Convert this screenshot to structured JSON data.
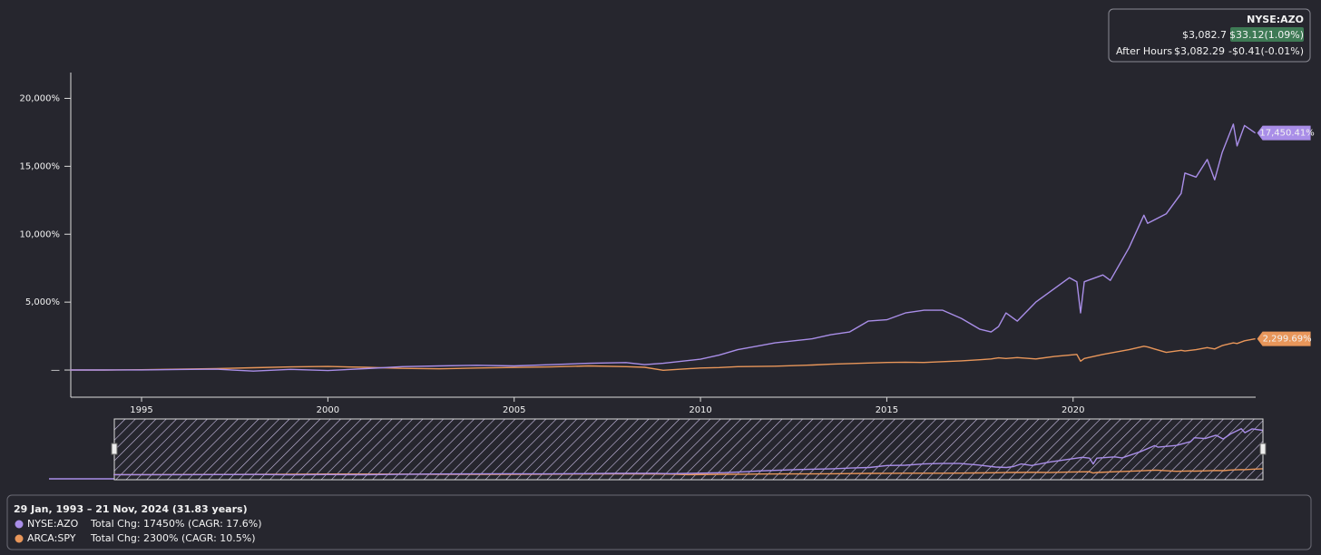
{
  "chart_data": {
    "type": "line",
    "quote": {
      "symbol": "NYSE:AZO",
      "price": "$3,082.7",
      "change": "$33.12(1.09%)",
      "after_hours_label": "After Hours",
      "after_hours_price": "$3,082.29",
      "after_hours_change": "-$0.41(-0.01%)"
    },
    "period": "29 Jan, 1993 – 21 Nov, 2024 (31.83 years)",
    "x": [
      1993.08,
      1994,
      1995,
      1996,
      1997,
      1998,
      1999,
      2000,
      2001,
      2002,
      2003,
      2004,
      2005,
      2006,
      2007,
      2008,
      2008.5,
      2009,
      2010,
      2010.5,
      2011,
      2012,
      2013,
      2013.5,
      2014,
      2014.5,
      2015,
      2015.5,
      2016,
      2016.5,
      2017,
      2017.5,
      2017.8,
      2018,
      2018.2,
      2018.5,
      2019,
      2019.5,
      2019.9,
      2020.1,
      2020.2,
      2020.3,
      2020.8,
      2021,
      2021.5,
      2021.9,
      2022,
      2022.5,
      2022.9,
      2023,
      2023.3,
      2023.6,
      2023.8,
      2024,
      2024.3,
      2024.4,
      2024.6,
      2024.89
    ],
    "series": [
      {
        "name": "NYSE:AZO",
        "color": "#a98ee8",
        "stats": "Total Chg: 17450% (CAGR: 17.6%)",
        "values": [
          0,
          0,
          10,
          40,
          60,
          -80,
          50,
          -40,
          100,
          250,
          300,
          350,
          300,
          400,
          500,
          550,
          400,
          500,
          800,
          1100,
          1500,
          2000,
          2300,
          2600,
          2800,
          3600,
          3700,
          4200,
          4400,
          4400,
          3800,
          3000,
          2800,
          3200,
          4200,
          3600,
          5000,
          6000,
          6800,
          6500,
          4200,
          6500,
          7000,
          6600,
          9000,
          11400,
          10800,
          11500,
          13000,
          14500,
          14200,
          15500,
          14000,
          16000,
          18100,
          16500,
          18000,
          17450.41
        ],
        "value_labels": [
          null,
          null,
          null,
          null,
          null,
          null,
          null,
          null,
          null,
          null,
          null,
          null,
          null,
          null,
          null,
          null,
          null,
          null,
          null,
          null,
          null,
          null,
          null,
          null,
          null,
          null,
          null,
          null,
          null,
          null,
          null,
          null,
          null,
          null,
          null,
          null,
          null,
          null,
          null,
          null,
          null,
          null,
          null,
          null,
          null,
          null,
          null,
          null,
          null,
          null,
          null,
          null,
          null,
          null,
          null,
          null,
          null,
          "17,450.41%"
        ]
      },
      {
        "name": "ARCA:SPY",
        "color": "#e8965a",
        "stats": "Total Chg: 2300% (CAGR: 10.5%)",
        "values": [
          0,
          5,
          20,
          60,
          110,
          170,
          230,
          260,
          200,
          120,
          90,
          150,
          190,
          230,
          300,
          250,
          200,
          -20,
          150,
          180,
          250,
          280,
          370,
          430,
          480,
          520,
          560,
          580,
          560,
          620,
          680,
          760,
          820,
          900,
          850,
          920,
          820,
          1000,
          1100,
          1150,
          650,
          850,
          1150,
          1250,
          1500,
          1750,
          1700,
          1300,
          1450,
          1400,
          1500,
          1650,
          1550,
          1800,
          2000,
          1950,
          2150,
          2299.69
        ],
        "value_labels": [
          null,
          null,
          null,
          null,
          null,
          null,
          null,
          null,
          null,
          null,
          null,
          null,
          null,
          null,
          null,
          null,
          null,
          null,
          null,
          null,
          null,
          null,
          null,
          null,
          null,
          null,
          null,
          null,
          null,
          null,
          null,
          null,
          null,
          null,
          null,
          null,
          null,
          null,
          null,
          null,
          null,
          null,
          null,
          null,
          null,
          null,
          null,
          null,
          null,
          null,
          null,
          null,
          null,
          null,
          null,
          null,
          null,
          "2,299.69%"
        ]
      }
    ],
    "xlim": [
      1993.1,
      2024.9
    ],
    "xticks": [
      1995,
      2000,
      2005,
      2010,
      2015,
      2020
    ],
    "ylim": [
      -2000,
      21900
    ],
    "yticks": [
      {
        "value": 0,
        "label": "—"
      },
      {
        "value": 5000,
        "label": "5,000%"
      },
      {
        "value": 10000,
        "label": "10,000%"
      },
      {
        "value": 15000,
        "label": "15,000%"
      },
      {
        "value": 20000,
        "label": "20,000%"
      }
    ]
  }
}
